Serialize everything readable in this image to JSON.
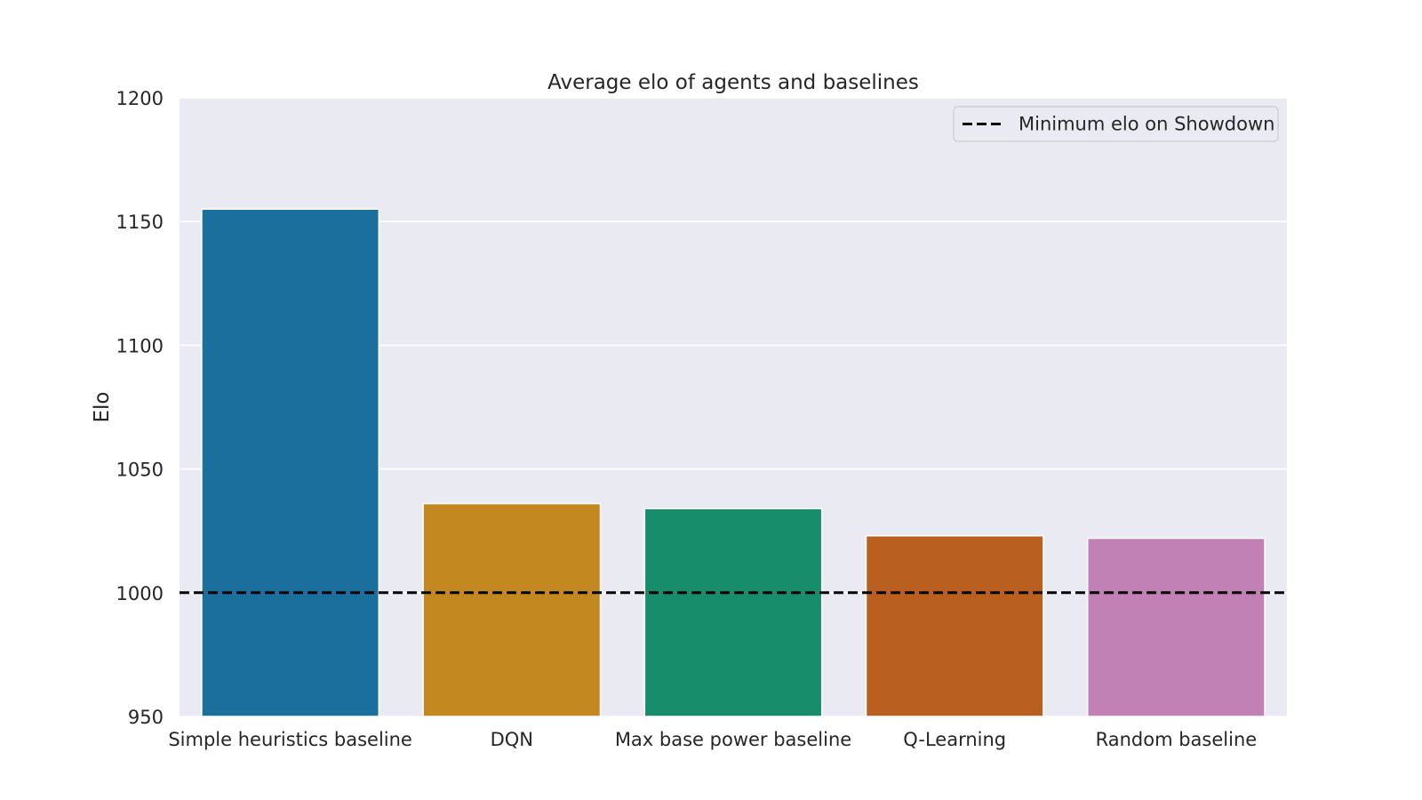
{
  "chart_data": {
    "type": "bar",
    "title": "Average elo of agents and baselines",
    "xlabel": "",
    "ylabel": "Elo",
    "ylim": [
      950,
      1200
    ],
    "yticks": [
      950,
      1000,
      1050,
      1100,
      1150,
      1200
    ],
    "categories": [
      "Simple heuristics baseline",
      "DQN",
      "Max base power baseline",
      "Q-Learning",
      "Random baseline"
    ],
    "values": [
      1155,
      1036,
      1034,
      1023,
      1022
    ],
    "colors": [
      "#1a6f9d",
      "#c38820",
      "#178d6c",
      "#b95f1f",
      "#c281b5"
    ],
    "reference_line": {
      "value": 1000,
      "style": "dashed",
      "color": "#000000",
      "label": "Minimum elo on Showdown"
    },
    "grid": true,
    "plot_background": "#eaeaf2",
    "legend": {
      "position": "top-right",
      "entries": [
        "Minimum elo on Showdown"
      ]
    }
  }
}
